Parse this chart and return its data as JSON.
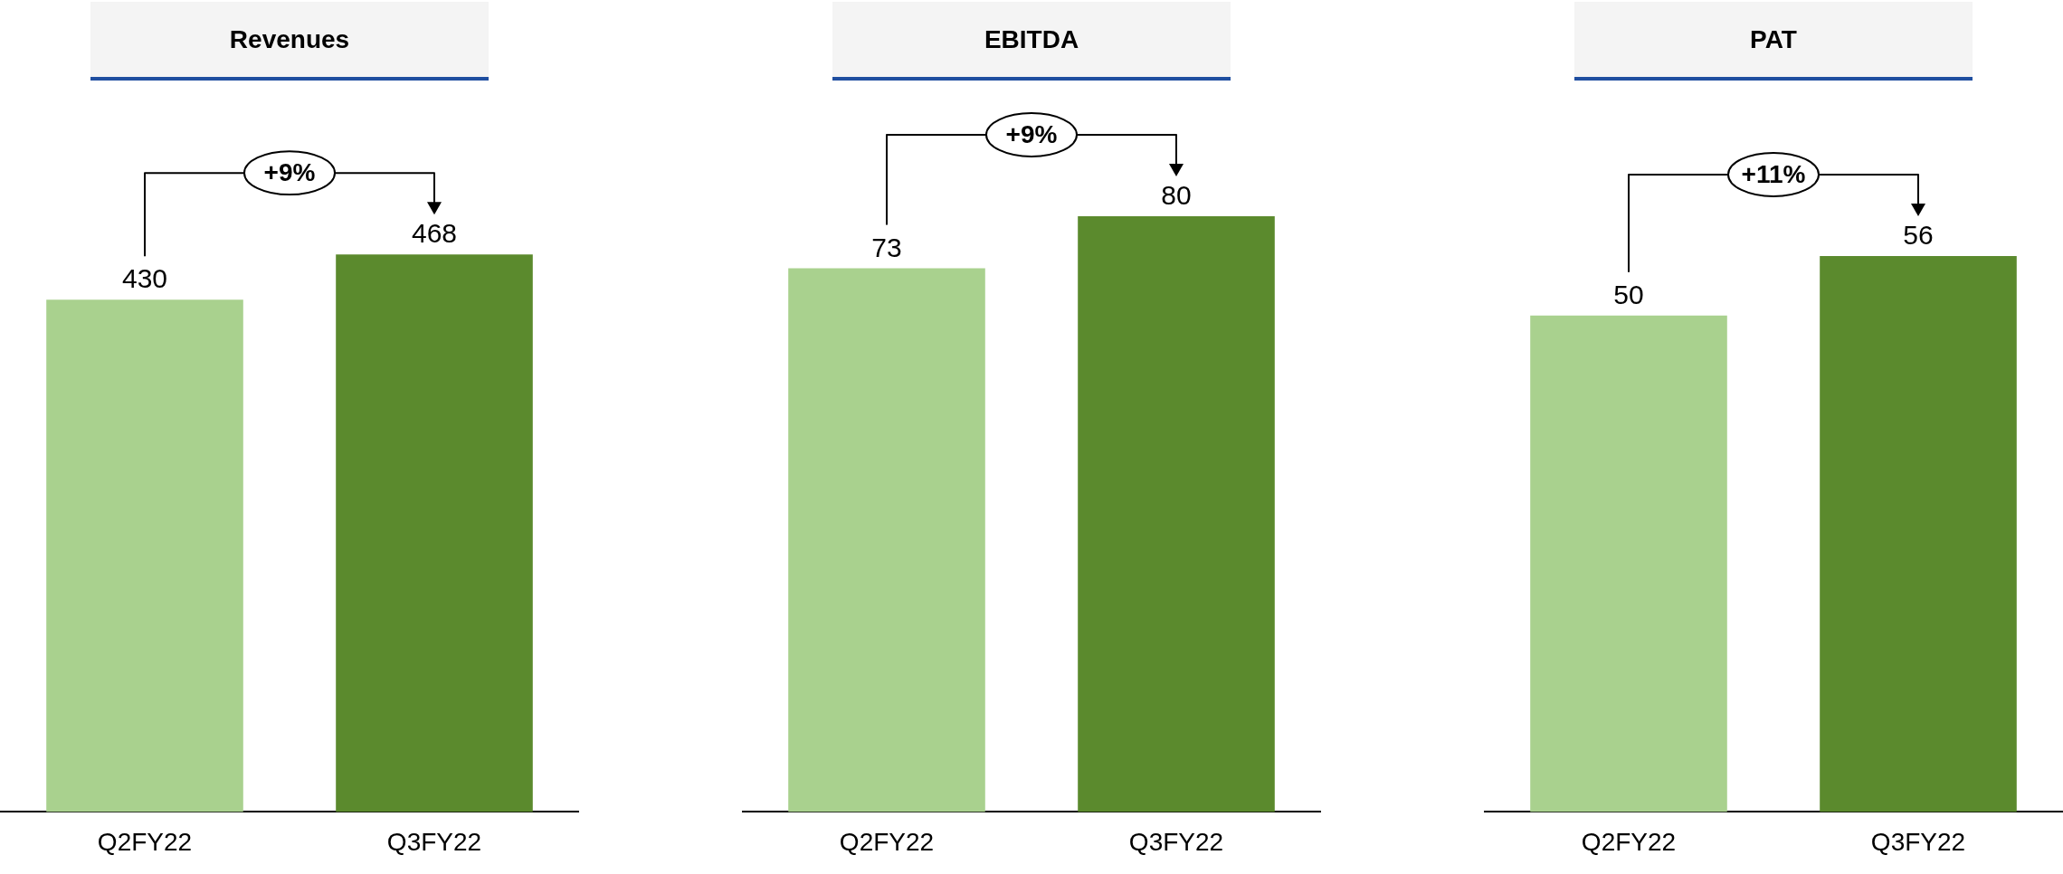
{
  "chart_data": [
    {
      "type": "bar",
      "title": "Revenues",
      "categories": [
        "Q2FY22",
        "Q3FY22"
      ],
      "values": [
        430,
        468
      ],
      "colors": [
        "#a9d18e",
        "#5b8a2d"
      ],
      "data_labels": true,
      "annotations": [
        "+9%"
      ]
    },
    {
      "type": "bar",
      "title": "EBITDA",
      "categories": [
        "Q2FY22",
        "Q3FY22"
      ],
      "values": [
        73,
        80
      ],
      "colors": [
        "#a9d18e",
        "#5b8a2d"
      ],
      "data_labels": true,
      "annotations": [
        "+9%"
      ]
    },
    {
      "type": "bar",
      "title": "PAT",
      "categories": [
        "Q2FY22",
        "Q3FY22"
      ],
      "values": [
        50,
        56
      ],
      "colors": [
        "#a9d18e",
        "#5b8a2d"
      ],
      "data_labels": true,
      "annotations": [
        "+11%"
      ]
    }
  ]
}
